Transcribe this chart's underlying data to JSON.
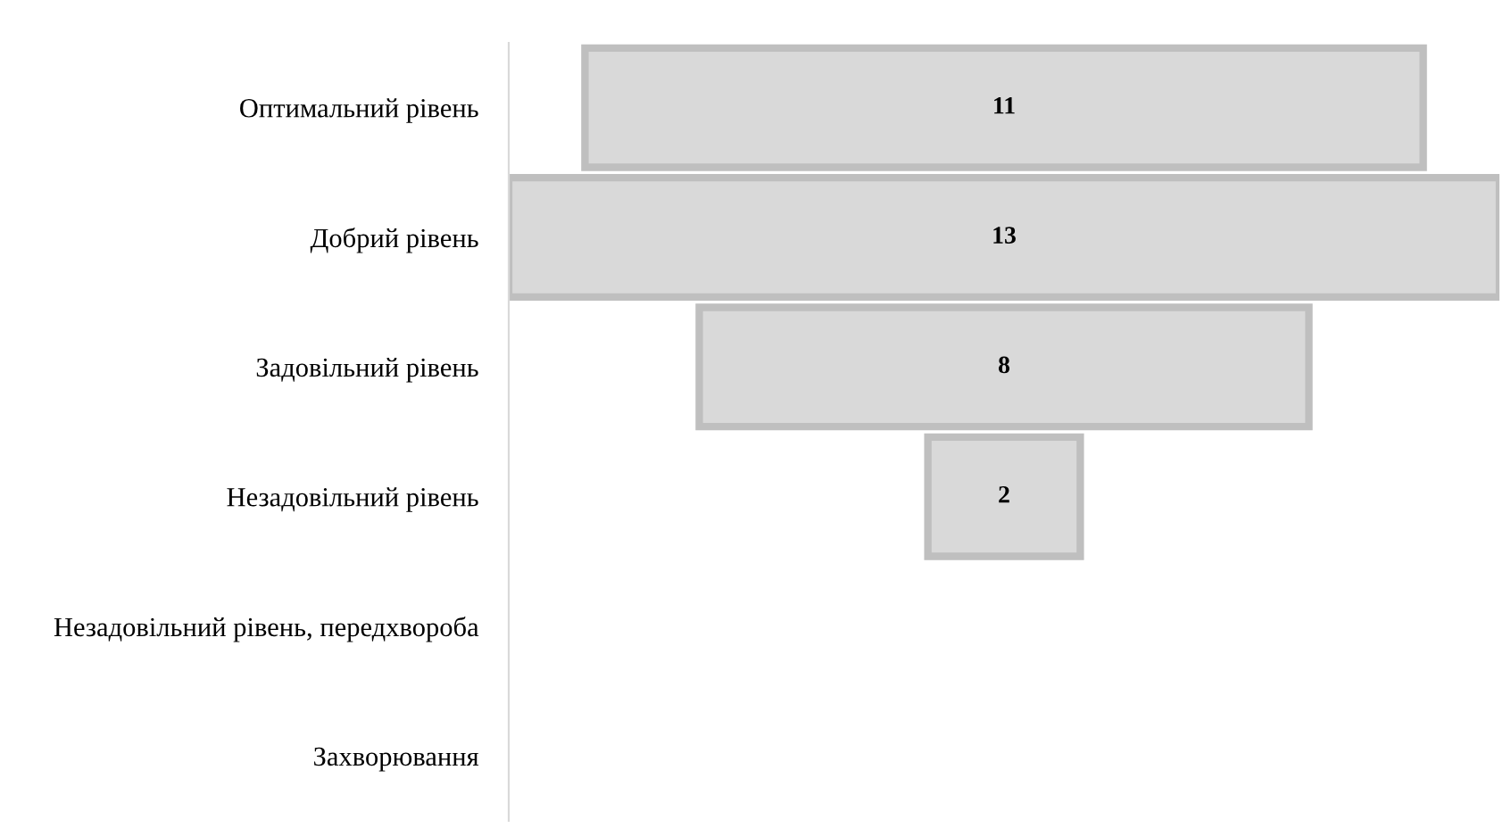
{
  "chart_data": {
    "type": "other",
    "categories": [
      "Оптимальний рівень",
      "Добрий рівень",
      "Задовільний рівень",
      "Незадовільний рівень",
      "Незадовільний рівень, передхвороба",
      "Захворювання"
    ],
    "values": [
      11,
      13,
      8,
      2,
      null,
      null
    ],
    "color": "#d9d9d9",
    "data_labels": true
  }
}
